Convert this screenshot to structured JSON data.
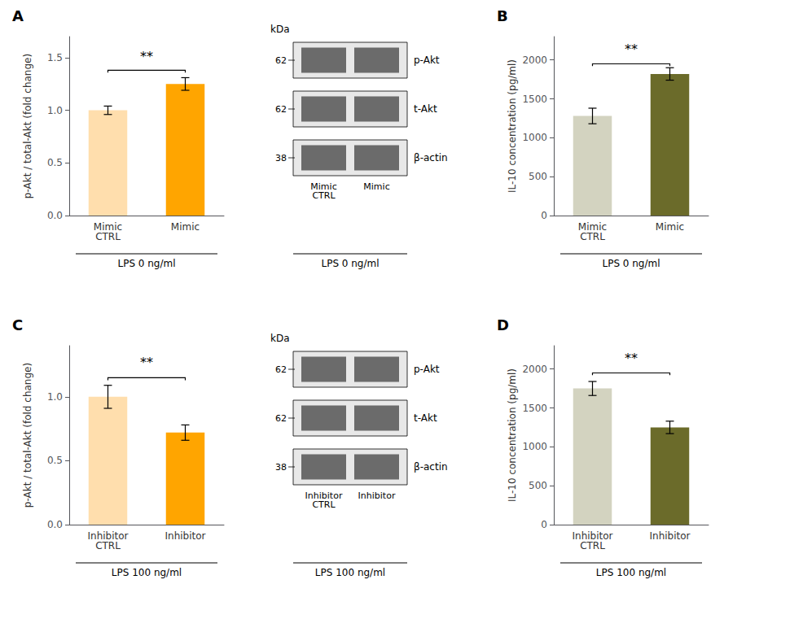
{
  "chart_data": [
    {
      "type": "bar",
      "title": "A",
      "categories": [
        "Mimic\nCTRL",
        "Mimic"
      ],
      "values": [
        1.0,
        1.25
      ],
      "errors": [
        0.04,
        0.06
      ],
      "colors": [
        "#FFDEAD",
        "#FFA500"
      ],
      "ylabel": "p-Akt / total-Akt (fold change)",
      "xlabel": "LPS 0 ng/ml",
      "ylim": [
        0,
        1.7
      ],
      "yticks": [
        {
          "value": 0,
          "label": "0.0"
        },
        0.5,
        {
          "value": 1.0,
          "label": "1.0"
        },
        1.5
      ],
      "annotations": [
        {
          "text": "**",
          "y": 1.45,
          "bracket_y": 1.38
        }
      ],
      "grid": false
    },
    {
      "type": "blot",
      "unit": "kDa",
      "categories": [
        "Mimic\nCTRL",
        "Mimic"
      ],
      "bands": [
        {
          "name": "p-Akt",
          "kda": 62
        },
        {
          "name": "t-Akt",
          "kda": 62
        },
        {
          "name": "β-actin",
          "kda": 38
        }
      ],
      "xlabel": "LPS 0 ng/ml"
    },
    {
      "type": "bar",
      "title": "B",
      "categories": [
        "Mimic\nCTRL",
        "Mimic"
      ],
      "values": [
        1280,
        1820
      ],
      "errors": [
        100,
        80
      ],
      "colors": [
        "#D3D3C0",
        "#6B6B2A"
      ],
      "ylabel": "IL-10 concentration (pg/ml)",
      "xlabel": "LPS 0 ng/ml",
      "ylim": [
        0,
        2300
      ],
      "yticks": [
        0,
        500,
        1000,
        1500,
        2000
      ],
      "annotations": [
        {
          "text": "**",
          "y": 2050,
          "bracket_y": 1950
        }
      ],
      "grid": false
    },
    {
      "type": "bar",
      "title": "C",
      "categories": [
        "Inhibitor\nCTRL",
        "Inhibitor"
      ],
      "values": [
        1.0,
        0.72
      ],
      "errors": [
        0.09,
        0.06
      ],
      "colors": [
        "#FFDEAD",
        "#FFA500"
      ],
      "ylabel": "p-Akt / total-Akt (fold change)",
      "xlabel": "LPS 100 ng/ml",
      "ylim": [
        0,
        1.4
      ],
      "yticks": [
        {
          "value": 0,
          "label": "0.0"
        },
        0.5,
        {
          "value": 1.0,
          "label": "1.0"
        }
      ],
      "annotations": [
        {
          "text": "**",
          "y": 1.22,
          "bracket_y": 1.15
        }
      ],
      "grid": false
    },
    {
      "type": "blot",
      "unit": "kDa",
      "categories": [
        "Inhibitor\nCTRL",
        "Inhibitor"
      ],
      "bands": [
        {
          "name": "p-Akt",
          "kda": 62
        },
        {
          "name": "t-Akt",
          "kda": 62
        },
        {
          "name": "β-actin",
          "kda": 38
        }
      ],
      "xlabel": "LPS 100 ng/ml"
    },
    {
      "type": "bar",
      "title": "D",
      "categories": [
        "Inhibitor\nCTRL",
        "Inhibitor"
      ],
      "values": [
        1750,
        1250
      ],
      "errors": [
        90,
        80
      ],
      "colors": [
        "#D3D3C0",
        "#6B6B2A"
      ],
      "ylabel": "IL-10 concentration (pg/ml)",
      "xlabel": "LPS 100 ng/ml",
      "ylim": [
        0,
        2300
      ],
      "yticks": [
        0,
        500,
        1000,
        1500,
        2000
      ],
      "annotations": [
        {
          "text": "**",
          "y": 2050,
          "bracket_y": 1950
        }
      ],
      "grid": false
    }
  ]
}
